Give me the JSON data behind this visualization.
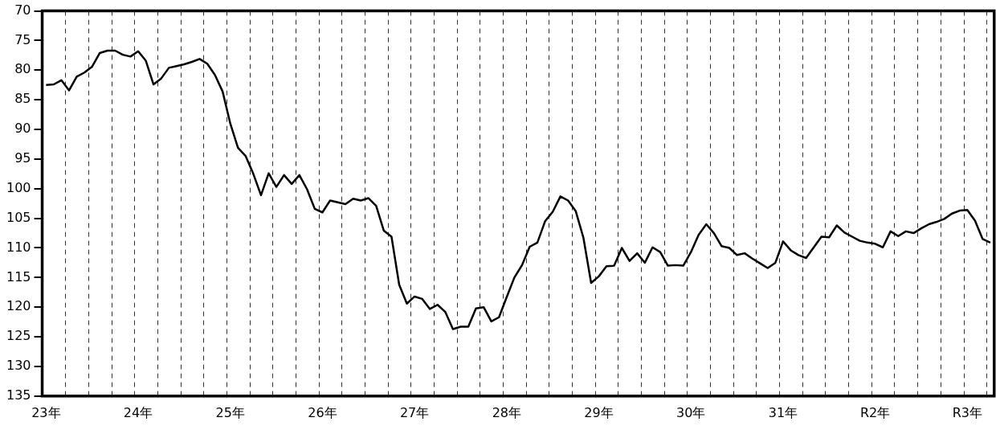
{
  "chart_data": {
    "type": "line",
    "categories": [
      "23年",
      null,
      null,
      null,
      null,
      null,
      null,
      null,
      null,
      null,
      null,
      null,
      "24年",
      null,
      null,
      null,
      null,
      null,
      null,
      null,
      null,
      null,
      null,
      null,
      "25年",
      null,
      null,
      null,
      null,
      null,
      null,
      null,
      null,
      null,
      null,
      null,
      "26年",
      null,
      null,
      null,
      null,
      null,
      null,
      null,
      null,
      null,
      null,
      null,
      "27年",
      null,
      null,
      null,
      null,
      null,
      null,
      null,
      null,
      null,
      null,
      null,
      "28年",
      null,
      null,
      null,
      null,
      null,
      null,
      null,
      null,
      null,
      null,
      null,
      "29年",
      null,
      null,
      null,
      null,
      null,
      null,
      null,
      null,
      null,
      null,
      null,
      "30年",
      null,
      null,
      null,
      null,
      null,
      null,
      null,
      null,
      null,
      null,
      null,
      "31年",
      null,
      null,
      null,
      null,
      null,
      null,
      null,
      null,
      null,
      null,
      null,
      "R2年",
      null,
      null,
      null,
      null,
      null,
      null,
      null,
      null,
      null,
      null,
      null,
      "R3年",
      null,
      null,
      null
    ],
    "series": [
      {
        "color": "#000000",
        "values": [
          82.5,
          82.4,
          81.7,
          83.4,
          81.1,
          80.4,
          79.4,
          77.1,
          76.7,
          76.7,
          77.4,
          77.7,
          76.8,
          78.4,
          82.4,
          81.4,
          79.6,
          79.3,
          79.0,
          78.6,
          78.1,
          78.9,
          80.8,
          83.6,
          89.0,
          93.1,
          94.5,
          97.5,
          101.1,
          97.4,
          99.7,
          97.7,
          99.2,
          97.7,
          100.1,
          103.4,
          104.0,
          102.0,
          102.3,
          102.6,
          101.7,
          102.0,
          101.6,
          102.9,
          107.1,
          108.1,
          116.2,
          119.4,
          118.2,
          118.6,
          120.3,
          119.6,
          120.8,
          123.7,
          123.3,
          123.3,
          120.2,
          120.0,
          122.4,
          121.7,
          118.3,
          115.0,
          112.9,
          109.8,
          109.1,
          105.5,
          103.9,
          101.3,
          102.0,
          103.8,
          108.3,
          115.9,
          114.8,
          113.1,
          113.0,
          110.0,
          112.2,
          110.9,
          112.5,
          109.9,
          110.7,
          113.0,
          112.9,
          113.0,
          110.7,
          107.8,
          106.0,
          107.5,
          109.7,
          110.0,
          111.2,
          110.9,
          111.8,
          112.6,
          113.4,
          112.5,
          108.9,
          110.4,
          111.2,
          111.7,
          109.9,
          108.1,
          108.2,
          106.2,
          107.4,
          108.1,
          108.8,
          109.1,
          109.3,
          109.9,
          107.2,
          108.0,
          107.2,
          107.5,
          106.7,
          106.0,
          105.6,
          105.1,
          104.2,
          103.7,
          103.6,
          105.4,
          108.5,
          109.1
        ]
      }
    ],
    "ylim": [
      135,
      70
    ],
    "yticks": [
      70,
      75,
      80,
      85,
      90,
      95,
      100,
      105,
      110,
      115,
      120,
      125,
      130,
      135
    ],
    "grid": "x",
    "legend": false,
    "marker": "none",
    "line_style": "solid"
  }
}
